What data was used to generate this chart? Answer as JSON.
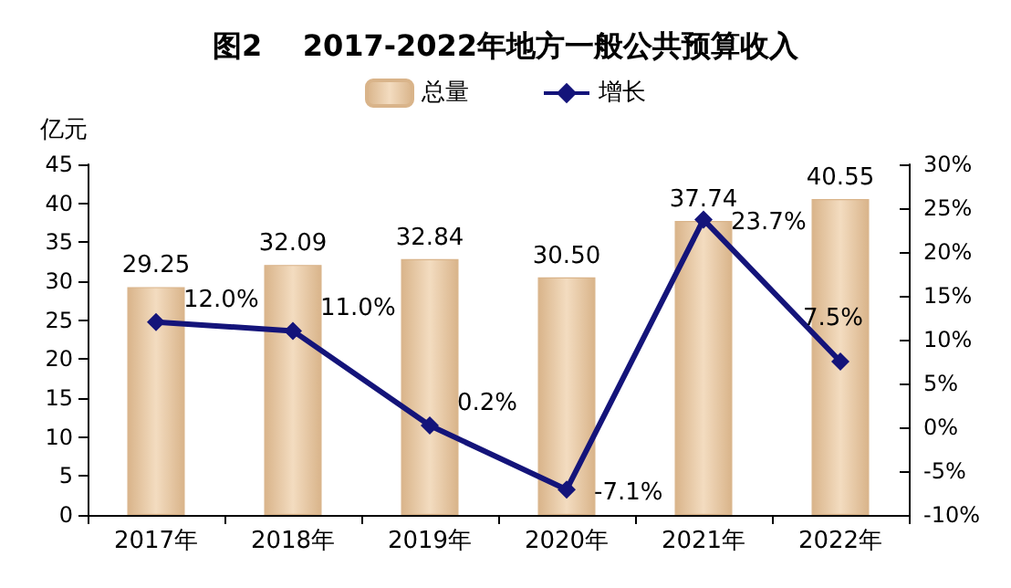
{
  "chart_data": {
    "type": "bar",
    "title": "图2    2017-2022年地方一般公共预算收入",
    "ylabel": "亿元",
    "categories": [
      "2017年",
      "2018年",
      "2019年",
      "2020年",
      "2021年",
      "2022年"
    ],
    "series": [
      {
        "name": "总量",
        "color": "#d9b48a",
        "values": [
          29.25,
          32.09,
          32.84,
          30.5,
          37.74,
          40.55
        ],
        "value_labels": [
          "29.25",
          "32.09",
          "32.84",
          "30.50",
          "37.74",
          "40.55"
        ]
      },
      {
        "name": "增长",
        "type": "line",
        "axis": "y2",
        "color": "#14147a",
        "marker": "diamond",
        "values": [
          12.0,
          11.0,
          0.2,
          -7.1,
          23.7,
          7.5
        ],
        "value_labels": [
          "12.0%",
          "11.0%",
          "0.2%",
          "-7.1%",
          "23.7%",
          "7.5%"
        ]
      }
    ],
    "ylim": [
      0,
      45
    ],
    "yticks": [
      0,
      5,
      10,
      15,
      20,
      25,
      30,
      35,
      40,
      45
    ],
    "y2lim": [
      -10,
      30
    ],
    "y2ticks": [
      {
        "value": -10,
        "label": "-10%"
      },
      {
        "value": -5,
        "label": "-5%"
      },
      {
        "value": 0,
        "label": "0%"
      },
      {
        "value": 5,
        "label": "5%"
      },
      {
        "value": 10,
        "label": "10%"
      },
      {
        "value": 15,
        "label": "15%"
      },
      {
        "value": 20,
        "label": "20%"
      },
      {
        "value": 25,
        "label": "25%"
      },
      {
        "value": 30,
        "label": "30%"
      }
    ],
    "grid": false,
    "legend": "top"
  }
}
